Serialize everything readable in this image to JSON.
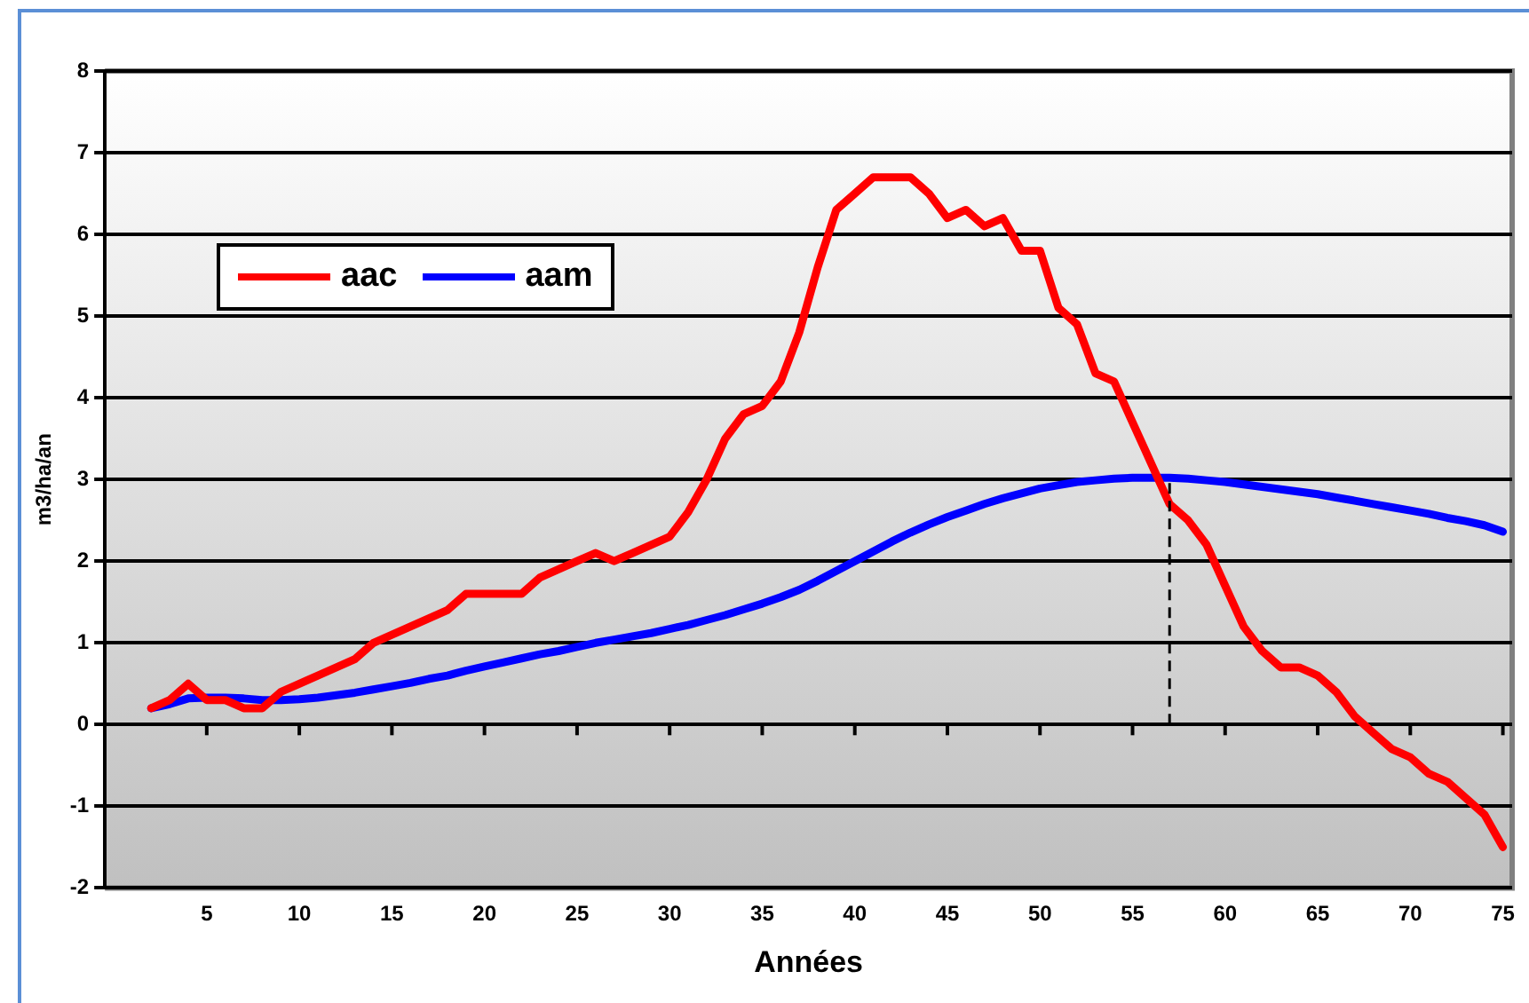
{
  "chart_data": {
    "type": "line",
    "xlabel": "Années",
    "ylabel": "m3/ha/an",
    "x": [
      2,
      3,
      4,
      5,
      6,
      7,
      8,
      9,
      10,
      11,
      12,
      13,
      14,
      15,
      16,
      17,
      18,
      19,
      20,
      21,
      22,
      23,
      24,
      25,
      26,
      27,
      28,
      29,
      30,
      31,
      32,
      33,
      34,
      35,
      36,
      37,
      38,
      39,
      40,
      41,
      42,
      43,
      44,
      45,
      46,
      47,
      48,
      49,
      50,
      51,
      52,
      53,
      54,
      55,
      56,
      57,
      58,
      59,
      60,
      61,
      62,
      63,
      64,
      65,
      66,
      67,
      68,
      69,
      70,
      71,
      72,
      73,
      74,
      75
    ],
    "series": [
      {
        "name": "aac",
        "color": "#ff0000",
        "values": [
          0.2,
          0.3,
          0.5,
          0.3,
          0.3,
          0.2,
          0.2,
          0.4,
          0.5,
          0.6,
          0.7,
          0.8,
          1.0,
          1.1,
          1.2,
          1.3,
          1.4,
          1.6,
          1.6,
          1.6,
          1.6,
          1.8,
          1.9,
          2.0,
          2.1,
          2.0,
          2.1,
          2.2,
          2.3,
          2.6,
          3.0,
          3.5,
          3.8,
          3.9,
          4.2,
          4.8,
          5.6,
          6.3,
          6.5,
          6.7,
          6.7,
          6.7,
          6.5,
          6.2,
          6.3,
          6.1,
          6.2,
          5.8,
          5.8,
          5.1,
          4.9,
          4.3,
          4.2,
          3.7,
          3.2,
          2.7,
          2.5,
          2.2,
          1.7,
          1.2,
          0.9,
          0.7,
          0.7,
          0.6,
          0.4,
          0.1,
          -0.1,
          -0.3,
          -0.4,
          -0.6,
          -0.7,
          -0.9,
          -1.1,
          -1.5
        ]
      },
      {
        "name": "aam",
        "color": "#0000ff",
        "values": [
          0.2,
          0.25,
          0.32,
          0.33,
          0.33,
          0.32,
          0.3,
          0.3,
          0.31,
          0.33,
          0.36,
          0.39,
          0.43,
          0.47,
          0.51,
          0.56,
          0.6,
          0.66,
          0.71,
          0.76,
          0.81,
          0.86,
          0.9,
          0.95,
          1.0,
          1.04,
          1.08,
          1.12,
          1.17,
          1.22,
          1.28,
          1.34,
          1.41,
          1.48,
          1.56,
          1.65,
          1.76,
          1.88,
          2.0,
          2.12,
          2.24,
          2.35,
          2.45,
          2.54,
          2.62,
          2.7,
          2.77,
          2.83,
          2.89,
          2.93,
          2.97,
          2.99,
          3.01,
          3.02,
          3.02,
          3.02,
          3.01,
          2.99,
          2.97,
          2.94,
          2.91,
          2.88,
          2.85,
          2.82,
          2.78,
          2.74,
          2.7,
          2.66,
          2.62,
          2.58,
          2.53,
          2.49,
          2.44,
          2.36
        ]
      }
    ],
    "xlim": [
      -0.5,
      75.5
    ],
    "xticks": [
      5,
      10,
      15,
      20,
      25,
      30,
      35,
      40,
      45,
      50,
      55,
      60,
      65,
      70,
      75
    ],
    "ylim": [
      -2,
      8
    ],
    "yticks": [
      -2,
      -1,
      0,
      1,
      2,
      3,
      4,
      5,
      6,
      7,
      8
    ],
    "ref_lines": [
      {
        "axis": "x",
        "value": 57,
        "color": "#000000",
        "line_style": "dashed"
      }
    ],
    "grid": "y",
    "legend": "top left",
    "marker": "none",
    "line_style": "solid"
  }
}
